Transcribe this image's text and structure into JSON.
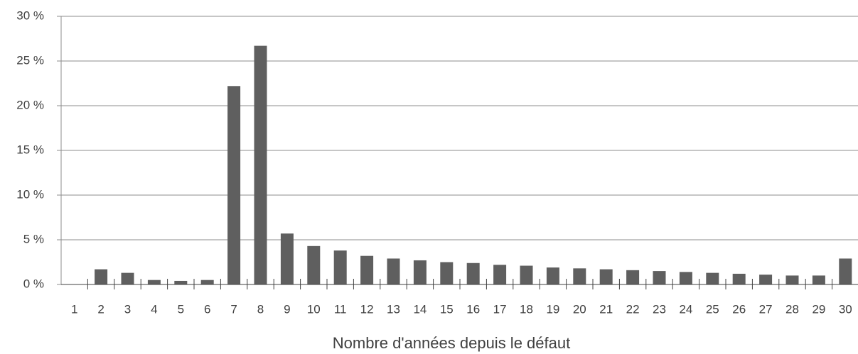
{
  "chart_data": {
    "type": "bar",
    "x_label": "Nombre d'années depuis le défaut",
    "categories": [
      "1",
      "2",
      "3",
      "4",
      "5",
      "6",
      "7",
      "8",
      "9",
      "10",
      "11",
      "12",
      "13",
      "14",
      "15",
      "16",
      "17",
      "18",
      "19",
      "20",
      "21",
      "22",
      "23",
      "24",
      "25",
      "26",
      "27",
      "28",
      "29",
      "30"
    ],
    "values": [
      0,
      1.7,
      1.3,
      0.5,
      0.4,
      0.5,
      22.2,
      26.7,
      5.7,
      4.3,
      3.8,
      3.2,
      2.9,
      2.7,
      2.5,
      2.4,
      2.2,
      2.1,
      1.9,
      1.8,
      1.7,
      1.6,
      1.5,
      1.4,
      1.3,
      1.2,
      1.1,
      1.0,
      1.0,
      2.9
    ],
    "color": "#5f5f5f",
    "ylim": [
      0,
      30
    ],
    "yticks": [
      {
        "value": 0,
        "label": "0 %"
      },
      {
        "value": 5,
        "label": "5 %"
      },
      {
        "value": 10,
        "label": "10 %"
      },
      {
        "value": 15,
        "label": "15 %"
      },
      {
        "value": 20,
        "label": "20 %"
      },
      {
        "value": 25,
        "label": "25 %"
      },
      {
        "value": 30,
        "label": "30 %"
      }
    ],
    "grid": true
  }
}
